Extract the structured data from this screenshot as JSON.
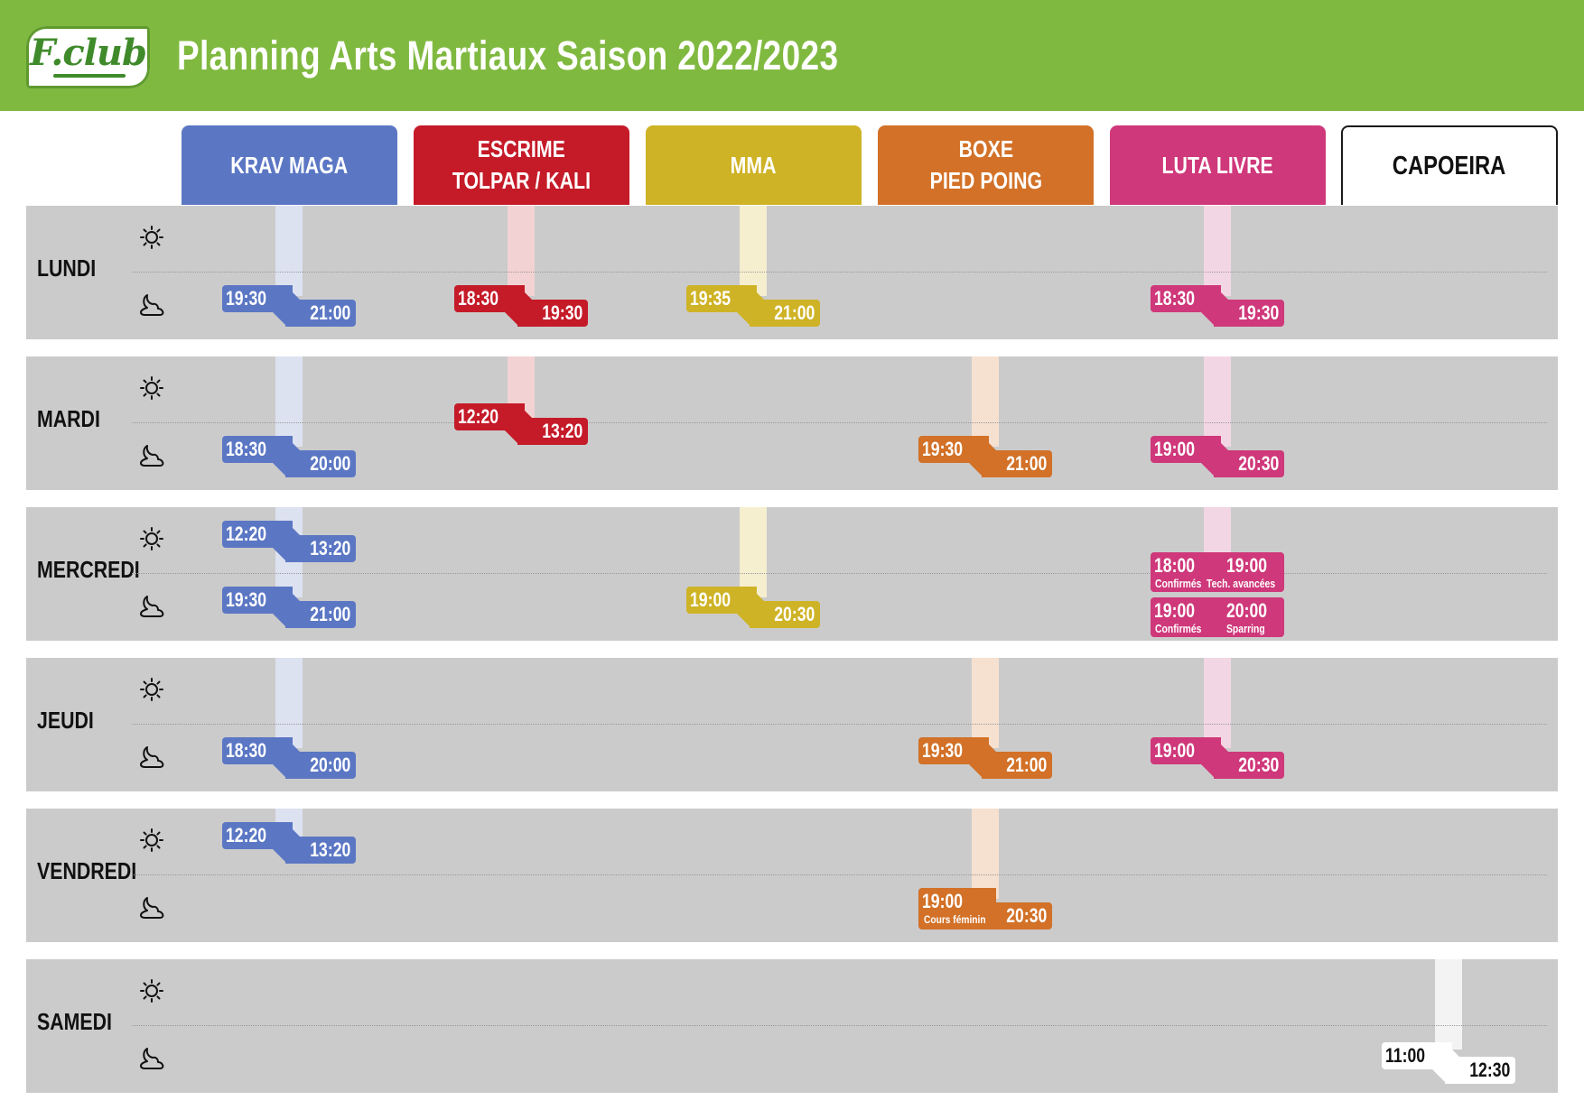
{
  "logo": {
    "text": "F.club"
  },
  "title": "Planning Arts Martiaux Saison 2022/2023",
  "disciplines": [
    {
      "line1": "KRAV MAGA",
      "line2": "",
      "color": "#5b77c4",
      "strip": "#dde2f1"
    },
    {
      "line1": "ESCRIME",
      "line2": "TOLPAR / KALI",
      "color": "#c51a28",
      "strip": "#f3d2d4"
    },
    {
      "line1": "MMA",
      "line2": "",
      "color": "#cfb326",
      "strip": "#f5efd0"
    },
    {
      "line1": "BOXE",
      "line2": "PIED POING",
      "color": "#d27127",
      "strip": "#f6e0cf"
    },
    {
      "line1": "LUTA LIVRE",
      "line2": "",
      "color": "#cf387a",
      "strip": "#f3d6e3"
    },
    {
      "line1": "CAPOEIRA",
      "line2": "",
      "color": "#ffffff",
      "strip": "#f3f3f3"
    }
  ],
  "days": [
    "LUNDI",
    "MARDI",
    "MERCREDI",
    "JEUDI",
    "VENDREDI",
    "SAMEDI"
  ],
  "icons": {
    "morning": "sun-icon",
    "evening": "moon-icon"
  },
  "schedule": {
    "lundi": {
      "krav": {
        "start": "19:30",
        "end": "21:00"
      },
      "escrime": {
        "start": "18:30",
        "end": "19:30"
      },
      "mma": {
        "start": "19:35",
        "end": "21:00"
      },
      "luta": {
        "start": "18:30",
        "end": "19:30"
      }
    },
    "mardi": {
      "krav": {
        "start": "18:30",
        "end": "20:00"
      },
      "escrime": {
        "start": "12:20",
        "end": "13:20"
      },
      "boxe": {
        "start": "19:30",
        "end": "21:00"
      },
      "luta": {
        "start": "19:00",
        "end": "20:30"
      }
    },
    "mercredi": {
      "krav_midi": {
        "start": "12:20",
        "end": "13:20"
      },
      "krav_soir": {
        "start": "19:30",
        "end": "21:00"
      },
      "mma": {
        "start": "19:00",
        "end": "20:30"
      },
      "luta_1": {
        "start": "18:00",
        "end": "19:00",
        "note_start": "Confirmés",
        "note_end": "Tech. avancées"
      },
      "luta_2": {
        "start": "19:00",
        "end": "20:00",
        "note_start": "Confirmés",
        "note_end": "Sparring"
      }
    },
    "jeudi": {
      "krav": {
        "start": "18:30",
        "end": "20:00"
      },
      "boxe": {
        "start": "19:30",
        "end": "21:00"
      },
      "luta": {
        "start": "19:00",
        "end": "20:30"
      }
    },
    "vendredi": {
      "krav": {
        "start": "12:20",
        "end": "13:20"
      },
      "boxe": {
        "start": "19:00",
        "end": "20:30",
        "note": "Cours féminin"
      }
    },
    "samedi": {
      "capoeira": {
        "start": "11:00",
        "end": "12:30"
      }
    }
  }
}
